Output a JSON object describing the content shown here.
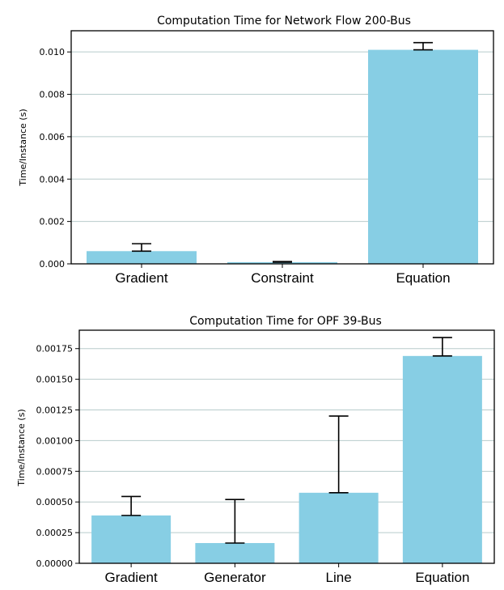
{
  "colors": {
    "bar": "#87cee4",
    "grid": "#b8cccc",
    "error": "#000000"
  },
  "chart_data": [
    {
      "type": "bar",
      "title": "Computation Time for Network Flow 200-Bus",
      "xlabel": "",
      "ylabel": "Time/Instance (s)",
      "ylim": [
        0,
        0.011
      ],
      "yticks": [
        0.0,
        0.002,
        0.004,
        0.006,
        0.008,
        0.01
      ],
      "ytick_labels": [
        "0.000",
        "0.002",
        "0.004",
        "0.006",
        "0.008",
        "0.010"
      ],
      "categories": [
        "Gradient",
        "Constraint",
        "Equation"
      ],
      "values": [
        0.0006,
        8e-05,
        0.0101
      ],
      "error_upper": [
        0.00095,
        0.00011,
        0.01044
      ],
      "grid": true
    },
    {
      "type": "bar",
      "title": "Computation Time for OPF 39-Bus",
      "xlabel": "",
      "ylabel": "Time/Instance (s)",
      "ylim": [
        0,
        0.0019
      ],
      "yticks": [
        0.0,
        0.00025,
        0.0005,
        0.00075,
        0.001,
        0.00125,
        0.0015,
        0.00175
      ],
      "ytick_labels": [
        "0.00000",
        "0.00025",
        "0.00050",
        "0.00075",
        "0.00100",
        "0.00125",
        "0.00150",
        "0.00175"
      ],
      "categories": [
        "Gradient",
        "Generator",
        "Line",
        "Equation"
      ],
      "values": [
        0.00039,
        0.000165,
        0.000575,
        0.00169
      ],
      "error_upper": [
        0.000545,
        0.00052,
        0.0012,
        0.00184
      ],
      "grid": true
    }
  ]
}
